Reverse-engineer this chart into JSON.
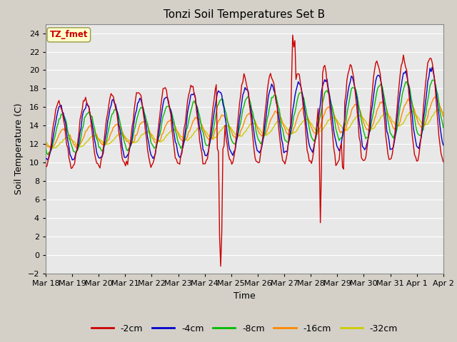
{
  "title": "Tonzi Soil Temperatures Set B",
  "xlabel": "Time",
  "ylabel": "Soil Temperature (C)",
  "ylim": [
    -2,
    25
  ],
  "yticks": [
    -2,
    0,
    2,
    4,
    6,
    8,
    10,
    12,
    14,
    16,
    18,
    20,
    22,
    24
  ],
  "series_colors": {
    "-2cm": "#cc0000",
    "-4cm": "#0000cc",
    "-8cm": "#00bb00",
    "-16cm": "#ff8800",
    "-32cm": "#cccc00"
  },
  "legend_labels": [
    "-2cm",
    "-4cm",
    "-8cm",
    "-16cm",
    "-32cm"
  ],
  "annotation_label": "TZ_fmet",
  "annotation_color": "#cc0000",
  "annotation_bg": "#ffffcc",
  "xtick_labels": [
    "Mar 18",
    "Mar 19",
    "Mar 20",
    "Mar 21",
    "Mar 22",
    "Mar 23",
    "Mar 24",
    "Mar 25",
    "Mar 26",
    "Mar 27",
    "Mar 28",
    "Mar 29",
    "Mar 30",
    "Mar 31",
    "Apr 1",
    "Apr 2"
  ],
  "n_days": 15,
  "n_per_day": 24,
  "fig_facecolor": "#d4d0c8",
  "ax_facecolor": "#e8e8e8",
  "grid_color": "#ffffff"
}
